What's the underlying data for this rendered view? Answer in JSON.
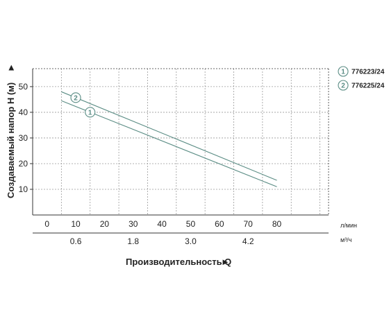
{
  "chart_data": {
    "type": "line",
    "ylabel": "Создаваемый напор H (м)",
    "xlabel": "Производительность Q",
    "ylim": [
      0,
      57
    ],
    "xlim": [
      -5,
      98
    ],
    "y_ticks": [
      "10",
      "20",
      "30",
      "40",
      "50"
    ],
    "y_tick_values": [
      10,
      20,
      30,
      40,
      50
    ],
    "x_ticks_primary": [
      "0",
      "10",
      "20",
      "30",
      "40",
      "50",
      "60",
      "70",
      "80"
    ],
    "x_tick_values_primary": [
      0,
      10,
      20,
      30,
      40,
      50,
      60,
      70,
      80
    ],
    "x_unit_primary": "л/мин",
    "x_ticks_secondary": [
      "0.6",
      "1.8",
      "3.0",
      "4.2"
    ],
    "x_tick_values_secondary": [
      10,
      30,
      50,
      70
    ],
    "x_unit_secondary": "м³/ч",
    "grid": true,
    "legend_position": "top-right",
    "series": [
      {
        "name": "776223/24",
        "marker_label": "1",
        "marker_at": 15,
        "x": [
          5,
          80
        ],
        "y": [
          44.5,
          11
        ]
      },
      {
        "name": "776225/24",
        "marker_label": "2",
        "marker_at": 10,
        "x": [
          5,
          80
        ],
        "y": [
          48,
          13.5
        ]
      }
    ],
    "colors": {
      "line": "#5a8c84",
      "axis": "#333333",
      "grid": "#999999"
    },
    "arrow_glyph": "►"
  }
}
